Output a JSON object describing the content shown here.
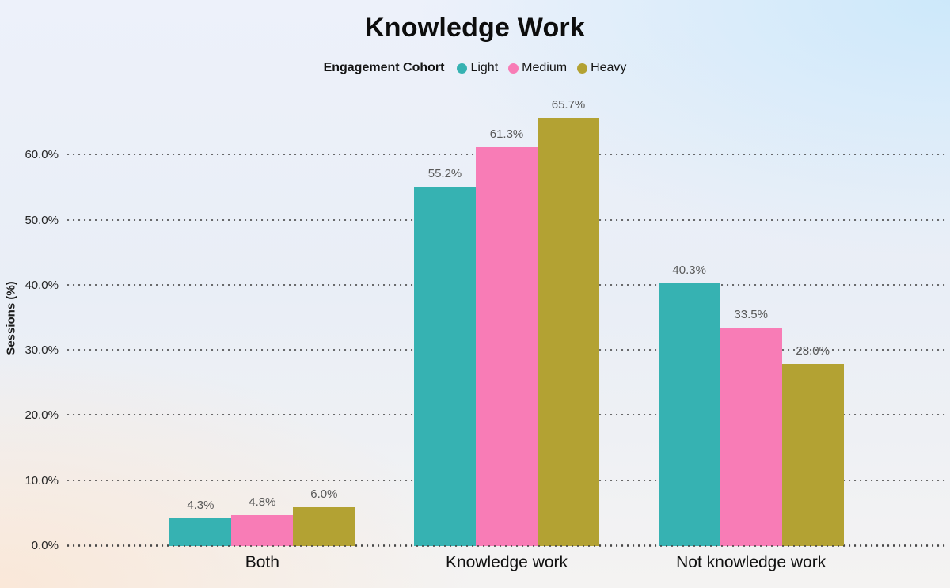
{
  "chart": {
    "title": "Knowledge Work",
    "legend_title": "Engagement Cohort",
    "ylabel": "Sessions (%)"
  },
  "chart_data": {
    "type": "bar",
    "title": "Knowledge Work",
    "categories": [
      "Both",
      "Knowledge work",
      "Not knowledge work"
    ],
    "series": [
      {
        "name": "Light",
        "color": "#36b2b2",
        "values": [
          4.3,
          55.2,
          40.3
        ]
      },
      {
        "name": "Medium",
        "color": "#f87cb6",
        "values": [
          4.8,
          61.3,
          33.5
        ]
      },
      {
        "name": "Heavy",
        "color": "#b3a233",
        "values": [
          6.0,
          65.7,
          28.0
        ]
      }
    ],
    "data_labels": [
      [
        "4.3%",
        "55.2%",
        "40.3%"
      ],
      [
        "4.8%",
        "61.3%",
        "33.5%"
      ],
      [
        "6.0%",
        "65.7%",
        "28.0%"
      ]
    ],
    "xlabel": "",
    "ylabel": "Sessions (%)",
    "ylim": [
      0,
      70
    ],
    "yticks": [
      0,
      10,
      20,
      30,
      40,
      50,
      60
    ],
    "ytick_labels": [
      "0.0%",
      "10.0%",
      "20.0%",
      "30.0%",
      "40.0%",
      "50.0%",
      "60.0%"
    ],
    "legend_title": "Engagement Cohort",
    "legend_position": "top",
    "grid": "dotted-horizontal",
    "label_color": "#595959",
    "background": "gradient-blue-peach"
  }
}
